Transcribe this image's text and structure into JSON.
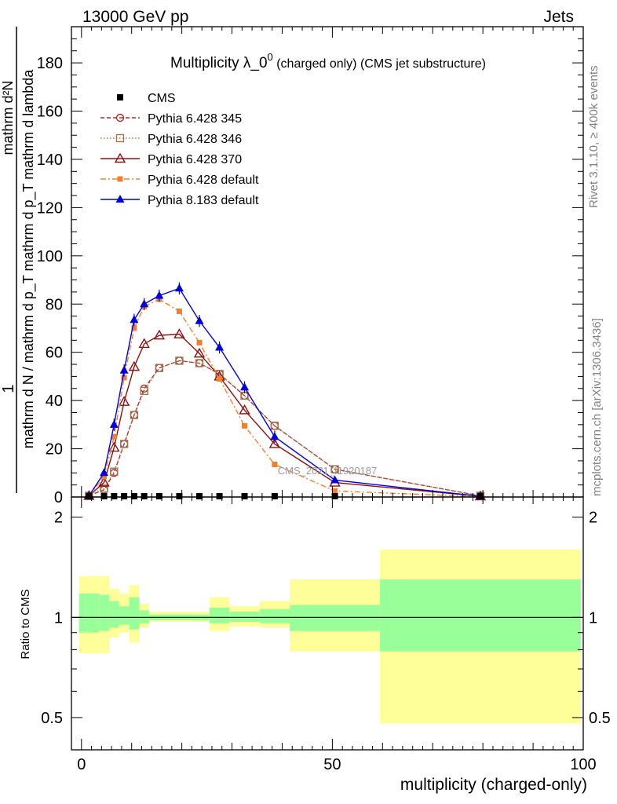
{
  "header": {
    "left": "13000 GeV pp",
    "right": "Jets"
  },
  "title": {
    "main": "Multiplicity λ_0",
    "sup": "0",
    "suffix": " (charged only) (CMS jet substructure)"
  },
  "side": {
    "rivet": "Rivet 3.1.10, ≥ 400k events",
    "mcplots": "mcplots.cern.ch [arXiv:1306.3436]"
  },
  "watermark": "CMS_2021_I1920187",
  "ylabel": {
    "one": "1",
    "numerator": "mathrm d²N",
    "denominator": "mathrm d N / mathrm d p_T mathrm d p_T mathrm d lambda"
  },
  "xlabel": "multiplicity (charged-only)",
  "ratio_label": "Ratio to CMS",
  "colors": {
    "band_outer": "#ffff99",
    "band_inner": "#99ff99",
    "p345": "#b03030",
    "p346": "#a07850",
    "p370": "#8b1010",
    "pdefault": "#f08030",
    "p8": "#0000dd"
  },
  "chart_data": {
    "type": "line",
    "xlim": [
      -2,
      100
    ],
    "ylim": [
      0,
      195
    ],
    "ratio_ylim": [
      0.4,
      2.3
    ],
    "xticks": [
      0,
      50,
      100
    ],
    "yticks": [
      0,
      20,
      40,
      60,
      80,
      100,
      120,
      140,
      160,
      180
    ],
    "ratio_yticks": [
      0.5,
      1,
      2
    ],
    "cms": {
      "name": "CMS",
      "x": [
        1.5,
        4.5,
        6.5,
        8.5,
        10.5,
        12.5,
        15.5,
        19.5,
        23.5,
        27.5,
        32.5,
        38.5,
        50.5,
        79.5
      ],
      "y": [
        0,
        0,
        0,
        0,
        0,
        0,
        0,
        0,
        0,
        0,
        0,
        0,
        0,
        0
      ]
    },
    "series": [
      {
        "name": "Pythia 6.428 345",
        "key": "p345",
        "x": [
          1.5,
          4.5,
          6.5,
          8.5,
          10.5,
          12.5,
          15.5,
          19.5,
          23.5,
          27.5,
          32.5,
          38.5,
          50.5,
          79.5
        ],
        "y": [
          0.5,
          3,
          10,
          22,
          34,
          45,
          53.5,
          56.5,
          55.5,
          51,
          42,
          29.5,
          11.5,
          0.5
        ]
      },
      {
        "name": "Pythia 6.428 346",
        "key": "p346",
        "x": [
          1.5,
          4.5,
          6.5,
          8.5,
          10.5,
          12.5,
          15.5,
          19.5,
          23.5,
          27.5,
          32.5,
          38.5,
          50.5,
          79.5
        ],
        "y": [
          0.5,
          3.5,
          10.5,
          22,
          34,
          44,
          53.5,
          56.5,
          55.5,
          51,
          42,
          29.5,
          11.5,
          0.5
        ]
      },
      {
        "name": "Pythia 6.428 370",
        "key": "p370",
        "x": [
          1.5,
          4.5,
          6.5,
          8.5,
          10.5,
          12.5,
          15.5,
          19.5,
          23.5,
          27.5,
          32.5,
          38.5,
          50.5,
          79.5
        ],
        "y": [
          0.5,
          6,
          20.5,
          39.5,
          54,
          63.5,
          67,
          67.5,
          59.5,
          50,
          36,
          22,
          6,
          0.3
        ]
      },
      {
        "name": "Pythia 6.428 default",
        "key": "pdefault",
        "x": [
          1.5,
          4.5,
          6.5,
          8.5,
          10.5,
          12.5,
          15.5,
          19.5,
          23.5,
          27.5,
          32.5,
          38.5,
          50.5,
          79.5
        ],
        "y": [
          0.5,
          8.5,
          25,
          49.5,
          70,
          79,
          82,
          77,
          64,
          49,
          29.5,
          13.5,
          2.5,
          0.1
        ]
      },
      {
        "name": "Pythia 8.183 default",
        "key": "p8",
        "x": [
          1.5,
          4.5,
          6.5,
          8.5,
          10.5,
          12.5,
          15.5,
          19.5,
          23.5,
          27.5,
          32.5,
          38.5,
          50.5,
          79.5
        ],
        "y": [
          0.5,
          10,
          30,
          52.5,
          73.5,
          80,
          83.5,
          86.5,
          73,
          62,
          45.5,
          25,
          7,
          0.3
        ]
      }
    ],
    "ratio_bands": [
      {
        "x": [
          -0.5,
          3.5
        ],
        "inner": [
          0.9,
          1.18
        ],
        "outer": [
          0.78,
          1.33
        ]
      },
      {
        "x": [
          3.5,
          5.5
        ],
        "inner": [
          0.91,
          1.17
        ],
        "outer": [
          0.78,
          1.33
        ]
      },
      {
        "x": [
          5.5,
          7.5
        ],
        "inner": [
          0.93,
          1.12
        ],
        "outer": [
          0.87,
          1.22
        ]
      },
      {
        "x": [
          7.5,
          9.5
        ],
        "inner": [
          0.95,
          1.08
        ],
        "outer": [
          0.9,
          1.18
        ]
      },
      {
        "x": [
          9.5,
          11.5
        ],
        "inner": [
          0.92,
          1.15
        ],
        "outer": [
          0.84,
          1.25
        ]
      },
      {
        "x": [
          11.5,
          13.5
        ],
        "inner": [
          0.96,
          1.05
        ],
        "outer": [
          0.93,
          1.1
        ]
      },
      {
        "x": [
          13.5,
          25.5
        ],
        "inner": [
          0.98,
          1.02
        ],
        "outer": [
          0.97,
          1.04
        ]
      },
      {
        "x": [
          25.5,
          29.5
        ],
        "inner": [
          0.96,
          1.07
        ],
        "outer": [
          0.91,
          1.15
        ]
      },
      {
        "x": [
          29.5,
          35.5
        ],
        "inner": [
          0.97,
          1.04
        ],
        "outer": [
          0.94,
          1.08
        ]
      },
      {
        "x": [
          35.5,
          41.5
        ],
        "inner": [
          0.96,
          1.06
        ],
        "outer": [
          0.93,
          1.12
        ]
      },
      {
        "x": [
          41.5,
          59.5
        ],
        "inner": [
          0.91,
          1.09
        ],
        "outer": [
          0.79,
          1.3
        ]
      },
      {
        "x": [
          59.5,
          99.5
        ],
        "inner": [
          0.79,
          1.3
        ],
        "outer": [
          0.48,
          1.6
        ]
      }
    ]
  }
}
